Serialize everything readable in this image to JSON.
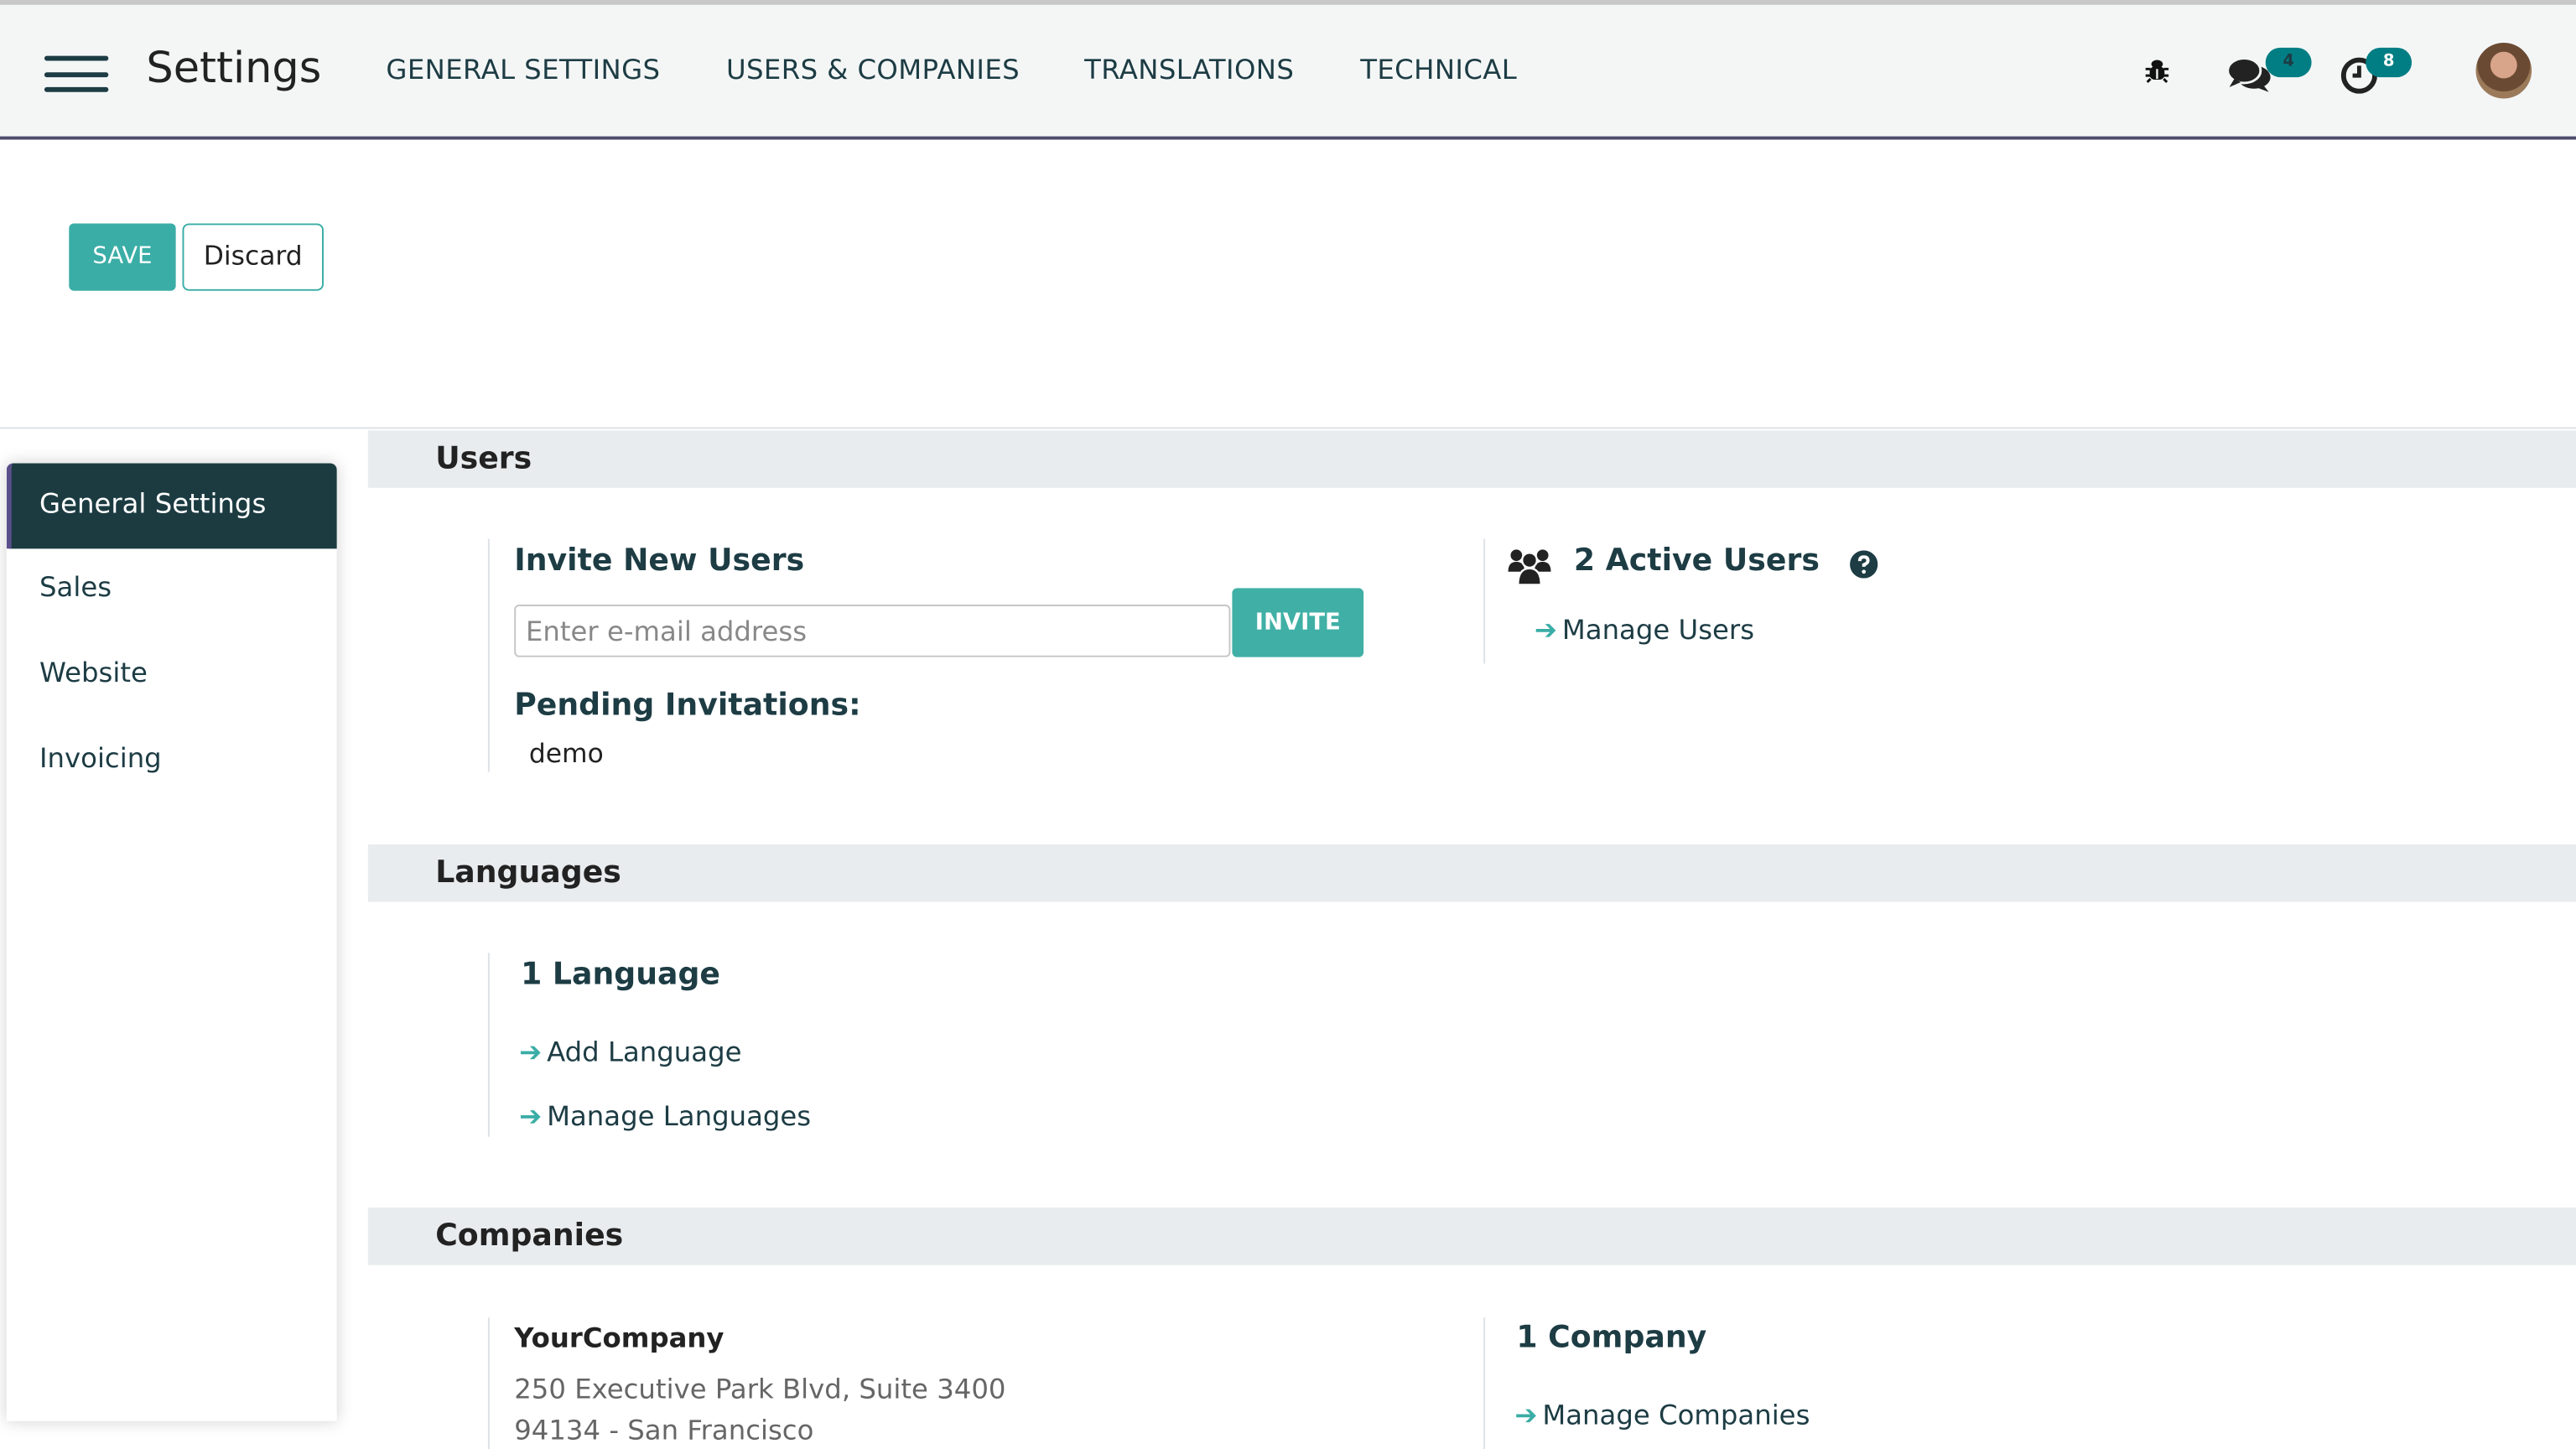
{
  "app": {
    "title": "Settings"
  },
  "nav": {
    "items": [
      "GENERAL SETTINGS",
      "USERS & COMPANIES",
      "TRANSLATIONS",
      "TECHNICAL"
    ]
  },
  "systray": {
    "messages_count": "4",
    "activities_count": "8",
    "icons": [
      "bug-icon",
      "chat-icon",
      "clock-icon",
      "avatar"
    ]
  },
  "actions": {
    "save": "SAVE",
    "discard": "Discard"
  },
  "sidebar": {
    "items": [
      {
        "label": "General Settings",
        "active": true
      },
      {
        "label": "Sales"
      },
      {
        "label": "Website"
      },
      {
        "label": "Invoicing"
      }
    ]
  },
  "users": {
    "header": "Users",
    "invite_title": "Invite New Users",
    "email_placeholder": "Enter e-mail address",
    "invite_button": "INVITE",
    "pending_title": "Pending Invitations:",
    "pending": [
      "demo"
    ],
    "active_users": "2 Active Users",
    "manage_users": "Manage Users"
  },
  "languages": {
    "header": "Languages",
    "count": "1 Language",
    "add": "Add Language",
    "manage": "Manage Languages"
  },
  "companies": {
    "header": "Companies",
    "name": "YourCompany",
    "address_line1": "250 Executive Park Blvd, Suite 3400",
    "address_line2": "94134 - San Francisco",
    "count": "1 Company",
    "manage": "Manage Companies"
  },
  "colors": {
    "accent": "#3aada6",
    "primary": "#1d3c44",
    "badge": "#017e84"
  }
}
